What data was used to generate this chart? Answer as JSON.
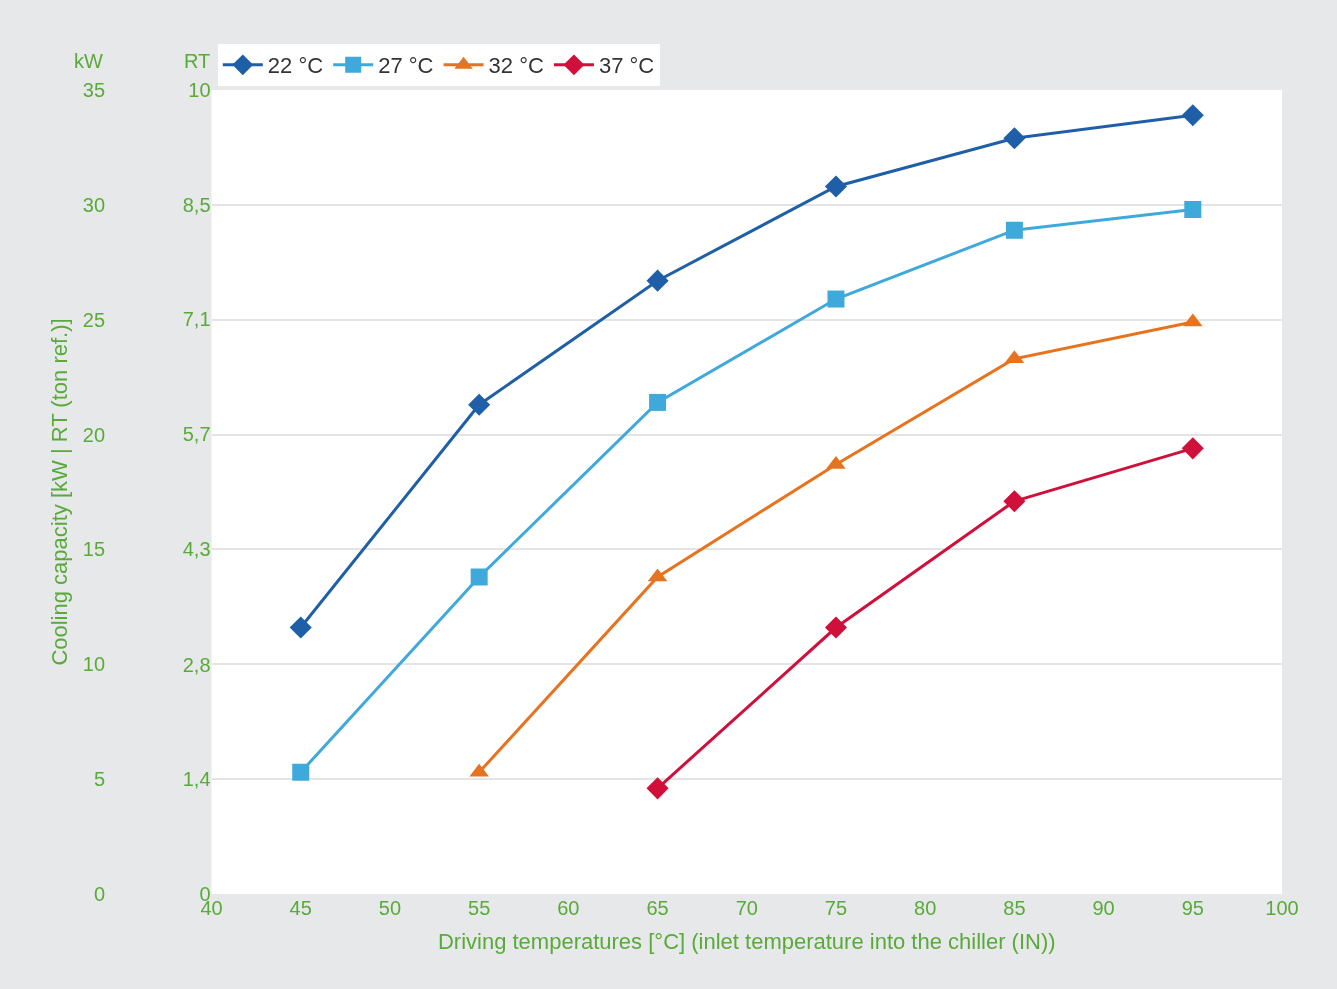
{
  "chart_data": {
    "type": "line",
    "xlabel": "Driving temperatures [°C] (inlet temperature into the chiller (IN))",
    "ylabel": "Cooling capacity [kW | RT (ton ref.)]",
    "annotations": [
      "kW",
      "RT"
    ],
    "xlim": [
      40,
      100
    ],
    "xticks": [
      40,
      45,
      50,
      55,
      60,
      65,
      70,
      75,
      80,
      85,
      90,
      95,
      100
    ],
    "ylim": [
      0,
      35
    ],
    "yticks": [
      0,
      5,
      10,
      15,
      20,
      25,
      30,
      35
    ],
    "y2lim": [
      0,
      9.95
    ],
    "y2ticks": [
      0,
      {
        "value": 1.42,
        "label": "1,4"
      },
      {
        "value": 2.84,
        "label": "2,8"
      },
      {
        "value": 4.27,
        "label": "4,3"
      },
      {
        "value": 5.69,
        "label": "5,7"
      },
      {
        "value": 7.11,
        "label": "7,1"
      },
      {
        "value": 8.53,
        "label": "8,5"
      },
      {
        "value": 9.95,
        "label": "10"
      }
    ],
    "grid": "y",
    "legend": "top",
    "line_style": "solid",
    "series": [
      {
        "name": "22 °C",
        "color": "#1f5fa8",
        "marker": "diamond",
        "x": [
          45,
          55,
          65,
          75,
          85,
          95
        ],
        "values": [
          11.6,
          21.3,
          26.7,
          30.8,
          32.9,
          33.9
        ]
      },
      {
        "name": "27 °C",
        "color": "#3fa9dc",
        "marker": "square",
        "x": [
          45,
          55,
          65,
          75,
          85,
          95
        ],
        "values": [
          5.3,
          13.8,
          21.4,
          25.9,
          28.9,
          29.8
        ]
      },
      {
        "name": "32 °C",
        "color": "#e8731e",
        "marker": "triangle",
        "x": [
          55,
          65,
          75,
          85,
          95
        ],
        "values": [
          5.3,
          13.8,
          18.7,
          23.3,
          24.9
        ]
      },
      {
        "name": "37 °C",
        "color": "#d0103a",
        "marker": "diamond",
        "x": [
          65,
          75,
          85,
          95
        ],
        "values": [
          4.6,
          11.6,
          17.1,
          19.4
        ]
      }
    ]
  }
}
